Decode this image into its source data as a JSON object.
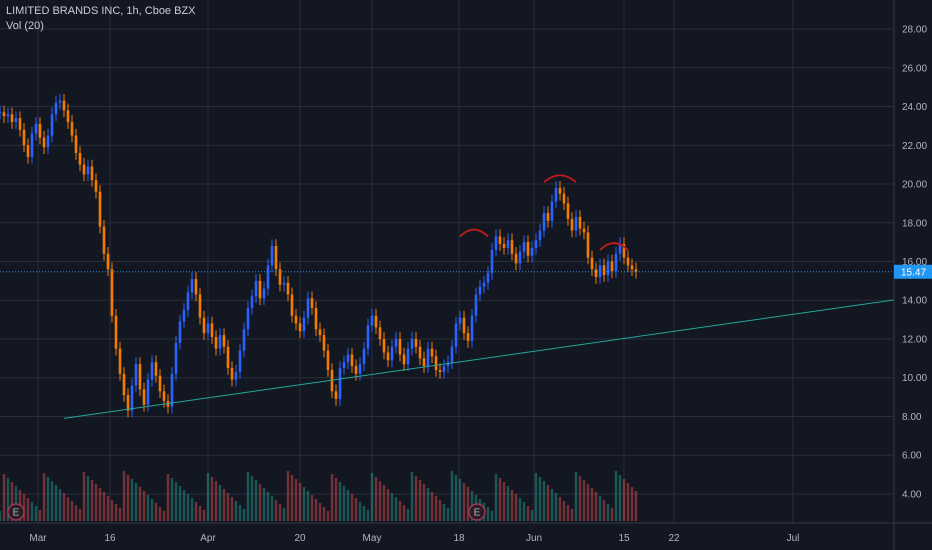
{
  "legend": {
    "title": "LIMITED BRANDS INC, 1h, Cboe BZX",
    "volume": "Vol (20)"
  },
  "colors": {
    "background": "#131722",
    "grid": "#2a2e39",
    "up": "#2962ff",
    "down": "#f57c00",
    "vol_up": "#26a69a",
    "vol_down": "#ef5350",
    "trendline": "#26a69a",
    "hs_arc": "#b71c1c",
    "price_line": "#2196f3"
  },
  "chart_data": {
    "type": "line",
    "title": "LIMITED BRANDS INC, 1h, Cboe BZX",
    "subtitle": "Vol (20)",
    "xlabel": "",
    "ylabel": "",
    "x_ticks": [
      "Mar",
      "16",
      "Apr",
      "20",
      "May",
      "18",
      "Jun",
      "15",
      "22",
      "Jul"
    ],
    "y_ticks": [
      "28.00",
      "26.00",
      "24.00",
      "22.00",
      "20.00",
      "18.00",
      "16.00",
      "14.00",
      "12.00",
      "10.00",
      "8.00",
      "6.00",
      "4.00"
    ],
    "ylim": [
      2.5,
      29.5
    ],
    "grid": true,
    "last_price": "15.47",
    "earnings_markers": [
      "E",
      "E"
    ],
    "series": [
      {
        "values": [
          23.7,
          23.5,
          23.6,
          23.2,
          23.4,
          22.8,
          22.0,
          21.4,
          22.6,
          23.1,
          22.4,
          21.9,
          22.5,
          23.6,
          24.2,
          24.3,
          23.8,
          23.2,
          22.5,
          21.6,
          21.0,
          20.5,
          20.9,
          20.2,
          19.6,
          17.8,
          16.4,
          15.6,
          13.2,
          11.5,
          10.2,
          9.1,
          8.3,
          9.6,
          10.7,
          9.4,
          8.6,
          9.9,
          10.8,
          10.1,
          9.3,
          8.8,
          8.5,
          10.2,
          11.8,
          12.9,
          13.5,
          14.4,
          15.1,
          14.3,
          13.1,
          12.3,
          12.8,
          12.1,
          11.5,
          12.2,
          11.6,
          10.5,
          9.9,
          10.3,
          11.4,
          12.5,
          13.6,
          14.2,
          15.0,
          14.1,
          14.6,
          15.8,
          16.8,
          15.6,
          14.8,
          14.9,
          14.3,
          13.2,
          12.8,
          12.4,
          13.1,
          14.1,
          13.6,
          12.5,
          12.2,
          11.4,
          10.4,
          9.3,
          8.9,
          10.5,
          10.8,
          11.2,
          10.6,
          10.2,
          10.7,
          11.5,
          12.7,
          13.2,
          12.6,
          12.0,
          11.3,
          10.9,
          11.6,
          12.0,
          11.2,
          10.7,
          11.5,
          12.0,
          11.6,
          11.0,
          10.6,
          11.5,
          11.1,
          10.4,
          10.3,
          10.6,
          10.8,
          11.6,
          12.8,
          13.1,
          12.3,
          11.9,
          13.2,
          14.3,
          14.7,
          14.9,
          15.4,
          16.6,
          17.3,
          16.9,
          16.7,
          17.1,
          16.4,
          15.9,
          16.5,
          17.0,
          16.3,
          16.7,
          17.1,
          17.6,
          18.5,
          18.1,
          19.1,
          19.8,
          19.5,
          19.0,
          18.2,
          17.6,
          18.3,
          17.7,
          17.5,
          16.2,
          15.6,
          15.2,
          15.8,
          15.3,
          16.0,
          15.5,
          16.4,
          16.9,
          16.2,
          15.8,
          15.6,
          15.47
        ]
      }
    ],
    "annotations": [
      {
        "type": "trendline",
        "from": {
          "bar": 16,
          "y": 7.9
        },
        "to": {
          "bar": 128,
          "y": 11.2
        }
      },
      {
        "type": "arc",
        "label": "left-shoulder",
        "bar_from": 116,
        "bar_to": 121,
        "y": 17.6
      },
      {
        "type": "arc",
        "label": "head",
        "bar_from": 137,
        "bar_to": 143,
        "y": 20.4
      },
      {
        "type": "arc",
        "label": "right-shoulder",
        "bar_from": 151,
        "bar_to": 156,
        "y": 16.9
      }
    ]
  }
}
